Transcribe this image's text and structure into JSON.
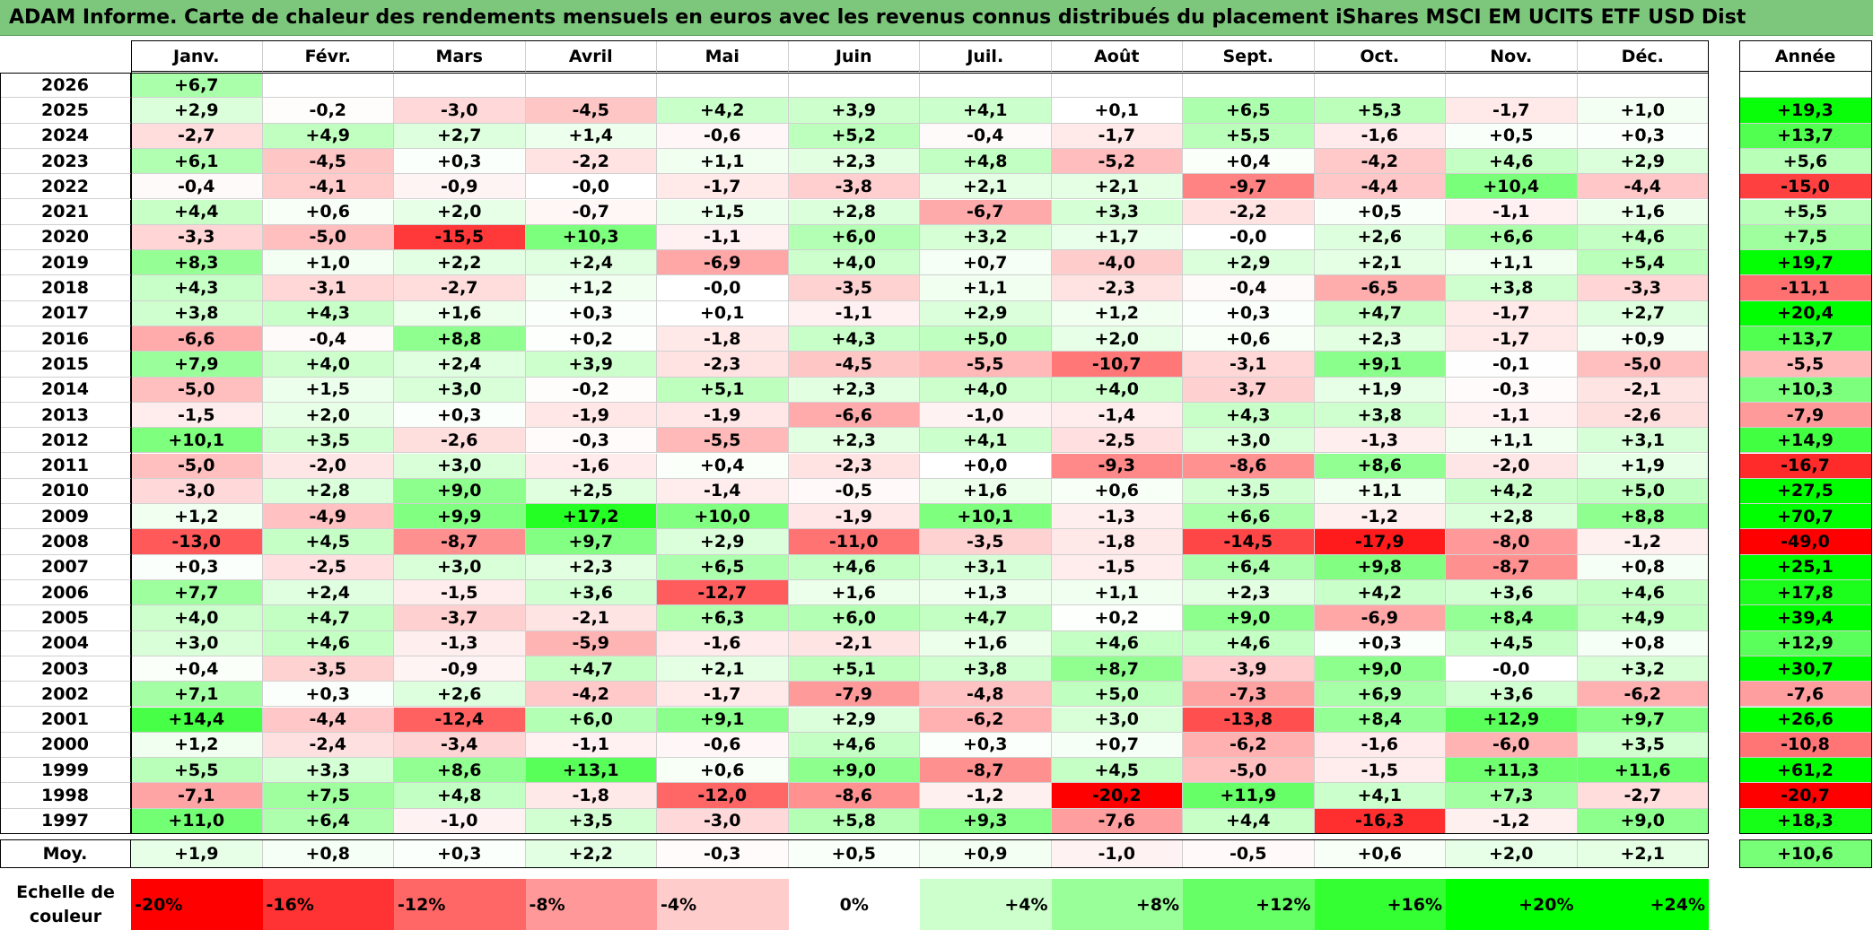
{
  "title": "ADAM Informe. Carte de chaleur des rendements mensuels en euros avec les revenus connus distribués du placement iShares MSCI EM UCITS ETF USD Dist",
  "chart_data": {
    "type": "heatmap",
    "months": [
      "Janv.",
      "Févr.",
      "Mars",
      "Avril",
      "Mai",
      "Juin",
      "Juil.",
      "Août",
      "Sept.",
      "Oct.",
      "Nov.",
      "Déc."
    ],
    "year_header": "Année",
    "avg_label": "Moy.",
    "rows": [
      {
        "year": "2026",
        "values": [
          "+6,7",
          "",
          "",
          "",
          "",
          "",
          "",
          "",
          "",
          "",
          "",
          ""
        ],
        "annual": ""
      },
      {
        "year": "2025",
        "values": [
          "+2,9",
          "-0,2",
          "-3,0",
          "-4,5",
          "+4,2",
          "+3,9",
          "+4,1",
          "+0,1",
          "+6,5",
          "+5,3",
          "-1,7",
          "+1,0"
        ],
        "annual": "+19,3"
      },
      {
        "year": "2024",
        "values": [
          "-2,7",
          "+4,9",
          "+2,7",
          "+1,4",
          "-0,6",
          "+5,2",
          "-0,4",
          "-1,7",
          "+5,5",
          "-1,6",
          "+0,5",
          "+0,3"
        ],
        "annual": "+13,7"
      },
      {
        "year": "2023",
        "values": [
          "+6,1",
          "-4,5",
          "+0,3",
          "-2,2",
          "+1,1",
          "+2,3",
          "+4,8",
          "-5,2",
          "+0,4",
          "-4,2",
          "+4,6",
          "+2,9"
        ],
        "annual": "+5,6"
      },
      {
        "year": "2022",
        "values": [
          "-0,4",
          "-4,1",
          "-0,9",
          "-0,0",
          "-1,7",
          "-3,8",
          "+2,1",
          "+2,1",
          "-9,7",
          "-4,4",
          "+10,4",
          "-4,4"
        ],
        "annual": "-15,0"
      },
      {
        "year": "2021",
        "values": [
          "+4,4",
          "+0,6",
          "+2,0",
          "-0,7",
          "+1,5",
          "+2,8",
          "-6,7",
          "+3,3",
          "-2,2",
          "+0,5",
          "-1,1",
          "+1,6"
        ],
        "annual": "+5,5"
      },
      {
        "year": "2020",
        "values": [
          "-3,3",
          "-5,0",
          "-15,5",
          "+10,3",
          "-1,1",
          "+6,0",
          "+3,2",
          "+1,7",
          "-0,0",
          "+2,6",
          "+6,6",
          "+4,6"
        ],
        "annual": "+7,5"
      },
      {
        "year": "2019",
        "values": [
          "+8,3",
          "+1,0",
          "+2,2",
          "+2,4",
          "-6,9",
          "+4,0",
          "+0,7",
          "-4,0",
          "+2,9",
          "+2,1",
          "+1,1",
          "+5,4"
        ],
        "annual": "+19,7"
      },
      {
        "year": "2018",
        "values": [
          "+4,3",
          "-3,1",
          "-2,7",
          "+1,2",
          "-0,0",
          "-3,5",
          "+1,1",
          "-2,3",
          "-0,4",
          "-6,5",
          "+3,8",
          "-3,3"
        ],
        "annual": "-11,1"
      },
      {
        "year": "2017",
        "values": [
          "+3,8",
          "+4,3",
          "+1,6",
          "+0,3",
          "+0,1",
          "-1,1",
          "+2,9",
          "+1,2",
          "+0,3",
          "+4,7",
          "-1,7",
          "+2,7"
        ],
        "annual": "+20,4"
      },
      {
        "year": "2016",
        "values": [
          "-6,6",
          "-0,4",
          "+8,8",
          "+0,2",
          "-1,8",
          "+4,3",
          "+5,0",
          "+2,0",
          "+0,6",
          "+2,3",
          "-1,7",
          "+0,9"
        ],
        "annual": "+13,7"
      },
      {
        "year": "2015",
        "values": [
          "+7,9",
          "+4,0",
          "+2,4",
          "+3,9",
          "-2,3",
          "-4,5",
          "-5,5",
          "-10,7",
          "-3,1",
          "+9,1",
          "-0,1",
          "-5,0"
        ],
        "annual": "-5,5"
      },
      {
        "year": "2014",
        "values": [
          "-5,0",
          "+1,5",
          "+3,0",
          "-0,2",
          "+5,1",
          "+2,3",
          "+4,0",
          "+4,0",
          "-3,7",
          "+1,9",
          "-0,3",
          "-2,1"
        ],
        "annual": "+10,3"
      },
      {
        "year": "2013",
        "values": [
          "-1,5",
          "+2,0",
          "+0,3",
          "-1,9",
          "-1,9",
          "-6,6",
          "-1,0",
          "-1,4",
          "+4,3",
          "+3,8",
          "-1,1",
          "-2,6"
        ],
        "annual": "-7,9"
      },
      {
        "year": "2012",
        "values": [
          "+10,1",
          "+3,5",
          "-2,6",
          "-0,3",
          "-5,5",
          "+2,3",
          "+4,1",
          "-2,5",
          "+3,0",
          "-1,3",
          "+1,1",
          "+3,1"
        ],
        "annual": "+14,9"
      },
      {
        "year": "2011",
        "values": [
          "-5,0",
          "-2,0",
          "+3,0",
          "-1,6",
          "+0,4",
          "-2,3",
          "+0,0",
          "-9,3",
          "-8,6",
          "+8,6",
          "-2,0",
          "+1,9"
        ],
        "annual": "-16,7"
      },
      {
        "year": "2010",
        "values": [
          "-3,0",
          "+2,8",
          "+9,0",
          "+2,5",
          "-1,4",
          "-0,5",
          "+1,6",
          "+0,6",
          "+3,5",
          "+1,1",
          "+4,2",
          "+5,0"
        ],
        "annual": "+27,5"
      },
      {
        "year": "2009",
        "values": [
          "+1,2",
          "-4,9",
          "+9,9",
          "+17,2",
          "+10,0",
          "-1,9",
          "+10,1",
          "-1,3",
          "+6,6",
          "-1,2",
          "+2,8",
          "+8,8"
        ],
        "annual": "+70,7"
      },
      {
        "year": "2008",
        "values": [
          "-13,0",
          "+4,5",
          "-8,7",
          "+9,7",
          "+2,9",
          "-11,0",
          "-3,5",
          "-1,8",
          "-14,5",
          "-17,9",
          "-8,0",
          "-1,2"
        ],
        "annual": "-49,0"
      },
      {
        "year": "2007",
        "values": [
          "+0,3",
          "-2,5",
          "+3,0",
          "+2,3",
          "+6,5",
          "+4,6",
          "+3,1",
          "-1,5",
          "+6,4",
          "+9,8",
          "-8,7",
          "+0,8"
        ],
        "annual": "+25,1"
      },
      {
        "year": "2006",
        "values": [
          "+7,7",
          "+2,4",
          "-1,5",
          "+3,6",
          "-12,7",
          "+1,6",
          "+1,3",
          "+1,1",
          "+2,3",
          "+4,2",
          "+3,6",
          "+4,6"
        ],
        "annual": "+17,8"
      },
      {
        "year": "2005",
        "values": [
          "+4,0",
          "+4,7",
          "-3,7",
          "-2,1",
          "+6,3",
          "+6,0",
          "+4,7",
          "+0,2",
          "+9,0",
          "-6,9",
          "+8,4",
          "+4,9"
        ],
        "annual": "+39,4"
      },
      {
        "year": "2004",
        "values": [
          "+3,0",
          "+4,6",
          "-1,3",
          "-5,9",
          "-1,6",
          "-2,1",
          "+1,6",
          "+4,6",
          "+4,6",
          "+0,3",
          "+4,5",
          "+0,8"
        ],
        "annual": "+12,9"
      },
      {
        "year": "2003",
        "values": [
          "+0,4",
          "-3,5",
          "-0,9",
          "+4,7",
          "+2,1",
          "+5,1",
          "+3,8",
          "+8,7",
          "-3,9",
          "+9,0",
          "-0,0",
          "+3,2"
        ],
        "annual": "+30,7"
      },
      {
        "year": "2002",
        "values": [
          "+7,1",
          "+0,3",
          "+2,6",
          "-4,2",
          "-1,7",
          "-7,9",
          "-4,8",
          "+5,0",
          "-7,3",
          "+6,9",
          "+3,6",
          "-6,2"
        ],
        "annual": "-7,6"
      },
      {
        "year": "2001",
        "values": [
          "+14,4",
          "-4,4",
          "-12,4",
          "+6,0",
          "+9,1",
          "+2,9",
          "-6,2",
          "+3,0",
          "-13,8",
          "+8,4",
          "+12,9",
          "+9,7"
        ],
        "annual": "+26,6"
      },
      {
        "year": "2000",
        "values": [
          "+1,2",
          "-2,4",
          "-3,4",
          "-1,1",
          "-0,6",
          "+4,6",
          "+0,3",
          "+0,7",
          "-6,2",
          "-1,6",
          "-6,0",
          "+3,5"
        ],
        "annual": "-10,8"
      },
      {
        "year": "1999",
        "values": [
          "+5,5",
          "+3,3",
          "+8,6",
          "+13,1",
          "+0,6",
          "+9,0",
          "-8,7",
          "+4,5",
          "-5,0",
          "-1,5",
          "+11,3",
          "+11,6"
        ],
        "annual": "+61,2"
      },
      {
        "year": "1998",
        "values": [
          "-7,1",
          "+7,5",
          "+4,8",
          "-1,8",
          "-12,0",
          "-8,6",
          "-1,2",
          "-20,2",
          "+11,9",
          "+4,1",
          "+7,3",
          "-2,7"
        ],
        "annual": "-20,7"
      },
      {
        "year": "1997",
        "values": [
          "+11,0",
          "+6,4",
          "-1,0",
          "+3,5",
          "-3,0",
          "+5,8",
          "+9,3",
          "-7,6",
          "+4,4",
          "-16,3",
          "-1,2",
          "+9,0"
        ],
        "annual": "+18,3"
      }
    ],
    "average": {
      "values": [
        "+1,9",
        "+0,8",
        "+0,3",
        "+2,2",
        "-0,3",
        "+0,5",
        "+0,9",
        "-1,0",
        "-0,5",
        "+0,6",
        "+2,0",
        "+2,1"
      ],
      "annual": "+10,6"
    },
    "scale": {
      "label_line1": "Echelle de",
      "label_line2": "couleur",
      "stops": [
        {
          "label": "-20%",
          "value": -20,
          "color": "#ff0000"
        },
        {
          "label": "-16%",
          "value": -16,
          "color": "#ff3333"
        },
        {
          "label": "-12%",
          "value": -12,
          "color": "#ff6666"
        },
        {
          "label": "-8%",
          "value": -8,
          "color": "#ff9999"
        },
        {
          "label": "-4%",
          "value": -4,
          "color": "#ffcccc"
        },
        {
          "label": "0%",
          "value": 0,
          "color": "#ffffff"
        },
        {
          "label": "+4%",
          "value": 4,
          "color": "#ccffcc"
        },
        {
          "label": "+8%",
          "value": 8,
          "color": "#99ff99"
        },
        {
          "label": "+12%",
          "value": 12,
          "color": "#66ff66"
        },
        {
          "label": "+16%",
          "value": 16,
          "color": "#33ff33"
        },
        {
          "label": "+20%",
          "value": 20,
          "color": "#00ff00"
        },
        {
          "label": "+24%",
          "value": 24,
          "color": "#00ff00"
        }
      ]
    }
  }
}
